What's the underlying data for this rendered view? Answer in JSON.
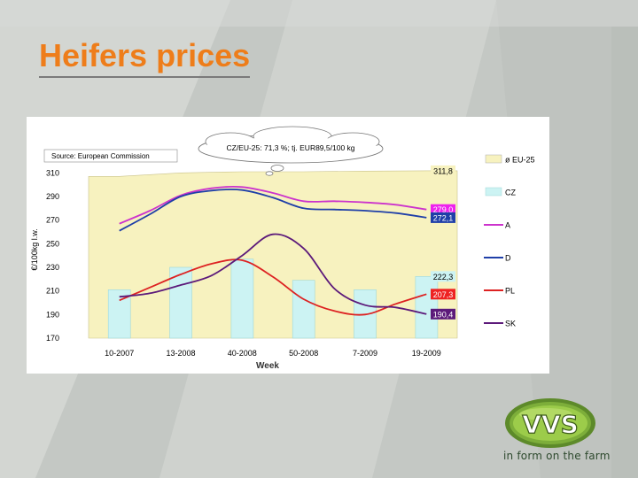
{
  "slide": {
    "title": "Heifers prices",
    "tagline": "in form on the farm",
    "logo_text": "VVS"
  },
  "chart_data": {
    "type": "line",
    "source_note": "Source: European Commission",
    "callout": "CZ/EU-25: 71,3 %; tj. EUR89,5/100 kg",
    "ylabel": "€/100kg l.w.",
    "xlabel": "Week",
    "ylim": [
      170,
      320
    ],
    "yticks": [
      "310",
      "290",
      "270",
      "250",
      "230",
      "210",
      "190",
      "170"
    ],
    "ytick_values": [
      310,
      290,
      270,
      250,
      230,
      210,
      190,
      170
    ],
    "categories": [
      "10-2007",
      "13-2008",
      "40-2008",
      "50-2008",
      "7-2009",
      "19-2009"
    ],
    "x": [
      0,
      1,
      2,
      3,
      4,
      5
    ],
    "bars": {
      "name": "CZ",
      "values": [
        211,
        230,
        237,
        219,
        211,
        222.3
      ],
      "color": "#ccf3f3"
    },
    "area": {
      "name": "ø EU-25",
      "values": [
        307,
        310,
        311,
        311,
        311.5,
        311.8
      ],
      "color": "#f7f2bf"
    },
    "series": [
      {
        "name": "A",
        "color": "#cc33cc",
        "x": [
          0,
          0.5,
          1,
          1.5,
          2,
          2.5,
          3,
          3.5,
          4,
          4.5,
          5
        ],
        "values": [
          267,
          278,
          291,
          297,
          298,
          293,
          286,
          286,
          285,
          283,
          279
        ]
      },
      {
        "name": "D",
        "color": "#1f3fa8",
        "x": [
          0,
          0.5,
          1,
          1.5,
          2,
          2.5,
          3,
          3.5,
          4,
          4.5,
          5
        ],
        "values": [
          261,
          275,
          290,
          295,
          295.5,
          289,
          280,
          279,
          278,
          276,
          272.1
        ]
      },
      {
        "name": "PL",
        "color": "#dd2222",
        "x": [
          0,
          0.5,
          1,
          1.5,
          2,
          2.5,
          3,
          3.5,
          4,
          4.5,
          5
        ],
        "values": [
          202,
          213,
          224,
          233,
          236,
          222,
          203,
          193,
          190,
          199,
          207.3
        ]
      },
      {
        "name": "SK",
        "color": "#5c1a7a",
        "x": [
          0,
          0.5,
          1,
          1.5,
          2,
          2.5,
          3,
          3.5,
          4,
          4.5,
          5
        ],
        "values": [
          205,
          208,
          215,
          223,
          240,
          258,
          246,
          212,
          198,
          196,
          190.4
        ]
      }
    ],
    "end_labels": [
      {
        "text": "311,8",
        "value": 311.8,
        "bg": "#f7f2bf",
        "fg": "#000000"
      },
      {
        "text": "279,0",
        "value": 279.0,
        "bg": "#ee22ee",
        "fg": "#ffffff"
      },
      {
        "text": "272,1",
        "value": 272.1,
        "bg": "#1f3fa8",
        "fg": "#ffffff"
      },
      {
        "text": "222,3",
        "value": 222.3,
        "bg": "#ccf3f3",
        "fg": "#000000"
      },
      {
        "text": "207,3",
        "value": 207.3,
        "bg": "#ee2222",
        "fg": "#ffffff"
      },
      {
        "text": "190,4",
        "value": 190.4,
        "bg": "#5c1a7a",
        "fg": "#ffffff"
      }
    ],
    "legend": {
      "placement": "right",
      "entries": [
        {
          "label": "ø EU-25",
          "kind": "area",
          "color": "#f7f2bf"
        },
        {
          "label": "CZ",
          "kind": "bar",
          "color": "#ccf3f3"
        },
        {
          "label": "A",
          "kind": "line",
          "color": "#cc33cc"
        },
        {
          "label": "D",
          "kind": "line",
          "color": "#1f3fa8"
        },
        {
          "label": "PL",
          "kind": "line",
          "color": "#dd2222"
        },
        {
          "label": "SK",
          "kind": "line",
          "color": "#5c1a7a"
        }
      ]
    }
  }
}
